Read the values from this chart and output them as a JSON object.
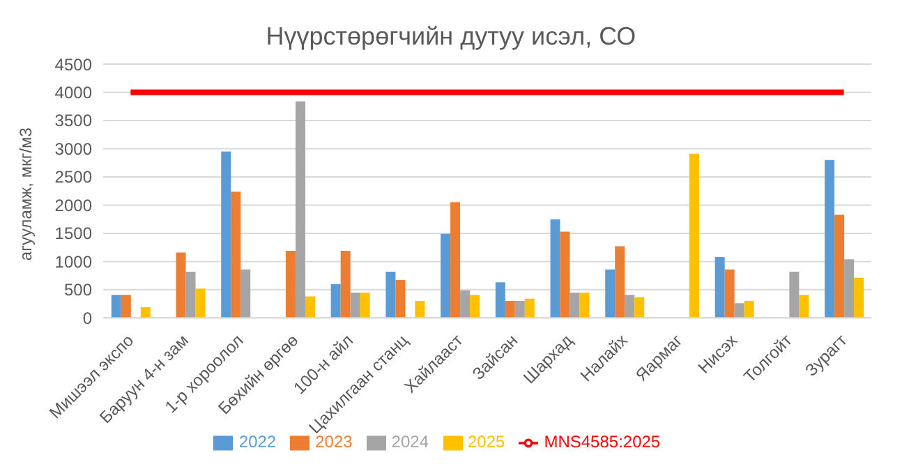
{
  "chart_data": {
    "type": "bar",
    "title": "Нүүрстөрөгчийн дутуу исэл, СО",
    "ylabel": "агууламж, мкг/м3",
    "categories": [
      "Мишээл экспо",
      "Баруун 4-н зам",
      "1-р хороолол",
      "Бөхийн өргөө",
      "100-н айл",
      "Цахилгаан станц",
      "Хайлааст",
      "Зайсан",
      "Шархад",
      "Налайх",
      "Яармаг",
      "Нисэх",
      "Толгойт",
      "Зурагт"
    ],
    "series": [
      {
        "name": "2022",
        "color": "#5b9bd5",
        "values": [
          410,
          null,
          2950,
          null,
          600,
          820,
          1490,
          630,
          1750,
          860,
          null,
          1080,
          null,
          2800
        ]
      },
      {
        "name": "2023",
        "color": "#ed7d31",
        "values": [
          410,
          1160,
          2240,
          1190,
          1190,
          670,
          2050,
          300,
          1530,
          1270,
          null,
          860,
          null,
          1830
        ]
      },
      {
        "name": "2024",
        "color": "#a5a5a5",
        "values": [
          null,
          820,
          860,
          3840,
          450,
          null,
          490,
          300,
          450,
          410,
          null,
          260,
          820,
          1040
        ]
      },
      {
        "name": "2025",
        "color": "#ffc000",
        "values": [
          190,
          520,
          null,
          380,
          450,
          300,
          410,
          340,
          450,
          370,
          2910,
          300,
          410,
          710
        ]
      },
      {
        "name": "MNS4585:2025",
        "type": "line",
        "color": "#ff0000",
        "marker": "none",
        "values": [
          4000,
          4000,
          4000,
          4000,
          4000,
          4000,
          4000,
          4000,
          4000,
          4000,
          4000,
          4000,
          4000,
          4000
        ]
      }
    ],
    "ylim": [
      0,
      4500
    ],
    "yticks": [
      0,
      500,
      1000,
      1500,
      2000,
      2500,
      3000,
      3500,
      4000,
      4500
    ],
    "grid": "y",
    "legend": "bottom"
  }
}
